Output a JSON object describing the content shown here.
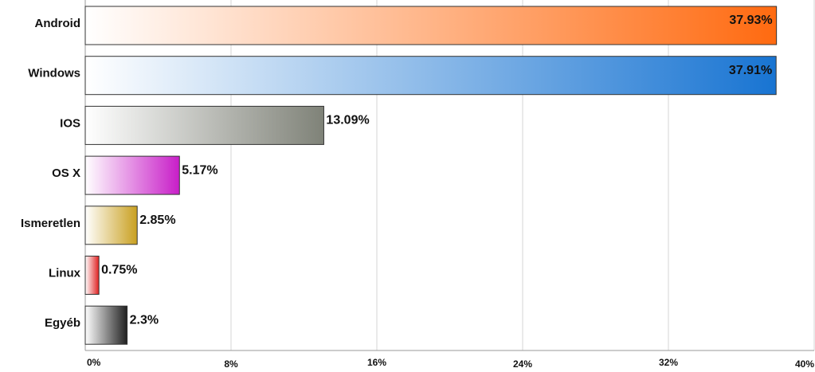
{
  "chart_data": {
    "type": "hbar",
    "categories": [
      "Android",
      "Windows",
      "IOS",
      "OS X",
      "Ismeretlen",
      "Linux",
      "Egyéb"
    ],
    "values": [
      37.93,
      37.91,
      13.09,
      5.17,
      2.85,
      0.75,
      2.3
    ],
    "value_labels": [
      "37.93%",
      "37.91%",
      "13.09%",
      "5.17%",
      "2.85%",
      "0.75%",
      "2.3%"
    ],
    "colors": [
      "#ff6a10",
      "#1874d2",
      "#7f8278",
      "#c81ec8",
      "#c9a020",
      "#e02020",
      "#202020"
    ],
    "xlim": [
      0,
      40
    ],
    "xticks": [
      {
        "value": 0,
        "label": "0%"
      },
      {
        "value": 8,
        "label": "8%"
      },
      {
        "value": 16,
        "label": "16%"
      },
      {
        "value": 24,
        "label": "24%"
      },
      {
        "value": 32,
        "label": "32%"
      },
      {
        "value": 40,
        "label": "40%"
      }
    ],
    "grid": true
  }
}
